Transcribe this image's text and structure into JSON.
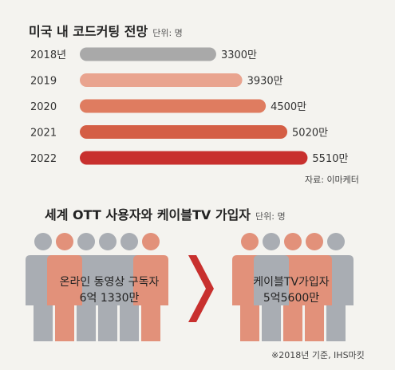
{
  "chart1": {
    "title": "미국 내 코드커팅 전망",
    "unit": "단위: 명",
    "source": "자료: 이마케터",
    "chart_data": {
      "type": "bar",
      "orientation": "horizontal",
      "categories": [
        "2018년",
        "2019",
        "2020",
        "2021",
        "2022"
      ],
      "values": [
        3300,
        3930,
        4500,
        5020,
        5510
      ],
      "value_labels": [
        "3300만",
        "3930만",
        "4500만",
        "5020만",
        "5510만"
      ],
      "colors": [
        "#a9a9a9",
        "#e9a48f",
        "#df7c60",
        "#d45e45",
        "#c8302e"
      ]
    }
  },
  "chart2": {
    "title": "세계 OTT 사용자와 케이블TV 가입자",
    "unit": "단위: 명",
    "footnote": "※2018년 기준, IHS마킷",
    "chart_data": {
      "type": "pictogram",
      "groups": [
        {
          "label": "온라인 동영상 구독자",
          "value_label": "6억 1330만",
          "value": 61330
        },
        {
          "label": "케이블TV가입자",
          "value_label": "5억5600만",
          "value": 55600
        }
      ]
    },
    "colors": {
      "gray": "#a9adb3",
      "orange": "#e2917a",
      "arrow": "#c8302e"
    }
  }
}
